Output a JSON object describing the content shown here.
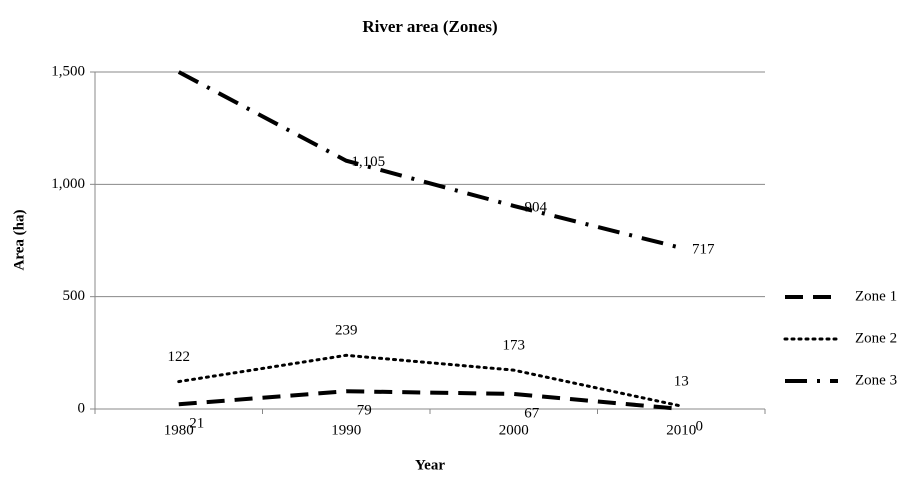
{
  "chart_data": {
    "type": "line",
    "title": "River area (Zones)",
    "x_label": "Year",
    "y_label": "Area (ha)",
    "categories": [
      "1980",
      "1990",
      "2000",
      "2010"
    ],
    "series": [
      {
        "name": "Zone 1",
        "color": "#000000",
        "style": "dash",
        "values": [
          21,
          79,
          67,
          0
        ]
      },
      {
        "name": "Zone 2",
        "color": "#000000",
        "style": "dot",
        "values": [
          122,
          239,
          173,
          13
        ]
      },
      {
        "name": "Zone 3",
        "color": "#000000",
        "style": "dashdot",
        "values": [
          1500,
          1105,
          904,
          717
        ],
        "value_labels": [
          null,
          "1,105",
          "904",
          "717"
        ]
      }
    ],
    "ylim": [
      0,
      1500
    ],
    "yticks": [
      0,
      500,
      {
        "value": 1000,
        "label": "1,000"
      },
      {
        "value": 1500,
        "label": "1,500"
      }
    ],
    "grid": true,
    "legend": "right"
  }
}
